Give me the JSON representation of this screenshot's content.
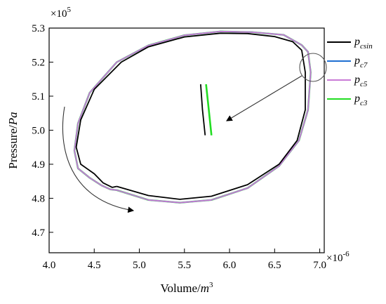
{
  "chart_data": {
    "type": "line",
    "xlabel_main": "Volume/",
    "xlabel_unit": "m",
    "xlabel_exp": "3",
    "ylabel_main": "Pressure/",
    "ylabel_unit": "Pa",
    "x_multiplier_base": "×10",
    "x_multiplier_exp": "-6",
    "y_multiplier_base": "×10",
    "y_multiplier_exp": "5",
    "xlim": [
      4.0,
      7.05
    ],
    "ylim": [
      4.64,
      5.3
    ],
    "x_ticks": [
      "4.0",
      "4.5",
      "5.0",
      "5.5",
      "6.0",
      "6.5",
      "7.0"
    ],
    "y_ticks": [
      "4.7",
      "4.8",
      "4.9",
      "5.0",
      "5.1",
      "5.2",
      "5.3"
    ],
    "grid": false,
    "legend_position": "right",
    "series": [
      {
        "name": "p_csin",
        "label_main": "p",
        "label_sub": "csin",
        "color": "#000000",
        "x": [
          4.75,
          5.1,
          5.45,
          5.8,
          6.2,
          6.55,
          6.75,
          6.84,
          6.84,
          6.8,
          6.7,
          6.5,
          6.2,
          5.9,
          5.5,
          5.1,
          4.8,
          4.5,
          4.35,
          4.3,
          4.35,
          4.5,
          4.6,
          4.7,
          4.75
        ],
        "y": [
          4.835,
          4.808,
          4.797,
          4.806,
          4.84,
          4.9,
          4.97,
          5.06,
          5.17,
          5.235,
          5.26,
          5.275,
          5.284,
          5.285,
          5.274,
          5.245,
          5.2,
          5.12,
          5.03,
          4.95,
          4.9,
          4.872,
          4.845,
          4.832,
          4.835
        ]
      },
      {
        "name": "p_c7",
        "label_main": "p",
        "label_sub": "c7",
        "color": "#1f6fd1",
        "x": [
          4.75,
          5.1,
          5.45,
          5.8,
          6.2,
          6.55,
          6.77,
          6.87,
          6.9,
          6.87,
          6.8,
          6.6,
          6.25,
          5.9,
          5.5,
          5.1,
          4.75,
          4.45,
          4.32,
          4.28,
          4.32,
          4.45,
          4.58,
          4.68,
          4.75
        ],
        "y": [
          4.824,
          4.795,
          4.787,
          4.795,
          4.83,
          4.895,
          4.97,
          5.06,
          5.17,
          5.23,
          5.25,
          5.28,
          5.288,
          5.29,
          5.279,
          5.249,
          5.2,
          5.11,
          5.02,
          4.94,
          4.888,
          4.86,
          4.838,
          4.826,
          4.824
        ]
      },
      {
        "name": "p_c5",
        "label_main": "p",
        "label_sub": "c5",
        "color": "#c97bd6",
        "x": [
          4.75,
          5.1,
          5.45,
          5.8,
          6.2,
          6.55,
          6.77,
          6.87,
          6.9,
          6.87,
          6.8,
          6.6,
          6.25,
          5.9,
          5.5,
          5.1,
          4.75,
          4.45,
          4.32,
          4.28,
          4.32,
          4.45,
          4.58,
          4.68,
          4.75
        ],
        "y": [
          4.824,
          4.795,
          4.787,
          4.795,
          4.83,
          4.895,
          4.97,
          5.06,
          5.17,
          5.23,
          5.25,
          5.28,
          5.288,
          5.29,
          5.279,
          5.249,
          5.2,
          5.11,
          5.02,
          4.94,
          4.888,
          4.86,
          4.838,
          4.826,
          4.824
        ]
      },
      {
        "name": "p_c3",
        "label_main": "p",
        "label_sub": "c3",
        "color": "#22dd22",
        "x": [
          4.75,
          5.1,
          5.45,
          5.8,
          6.2,
          6.55,
          6.77,
          6.87,
          6.9,
          6.87,
          6.8,
          6.6,
          6.25,
          5.9,
          5.5,
          5.1,
          4.75,
          4.45,
          4.32,
          4.28,
          4.32,
          4.45,
          4.58,
          4.68,
          4.75
        ],
        "y": [
          4.824,
          4.795,
          4.787,
          4.795,
          4.83,
          4.895,
          4.97,
          5.06,
          5.17,
          5.23,
          5.25,
          5.28,
          5.288,
          5.29,
          5.279,
          5.249,
          5.2,
          5.11,
          5.02,
          4.94,
          4.888,
          4.86,
          4.838,
          4.826,
          4.824
        ]
      }
    ],
    "zoom_inset": {
      "black": {
        "x": [
          5.68,
          5.7,
          5.73
        ],
        "y": [
          5.135,
          5.06,
          4.985
        ]
      },
      "green": {
        "x": [
          5.74,
          5.77,
          5.8
        ],
        "y": [
          5.135,
          5.06,
          4.985
        ]
      }
    }
  }
}
